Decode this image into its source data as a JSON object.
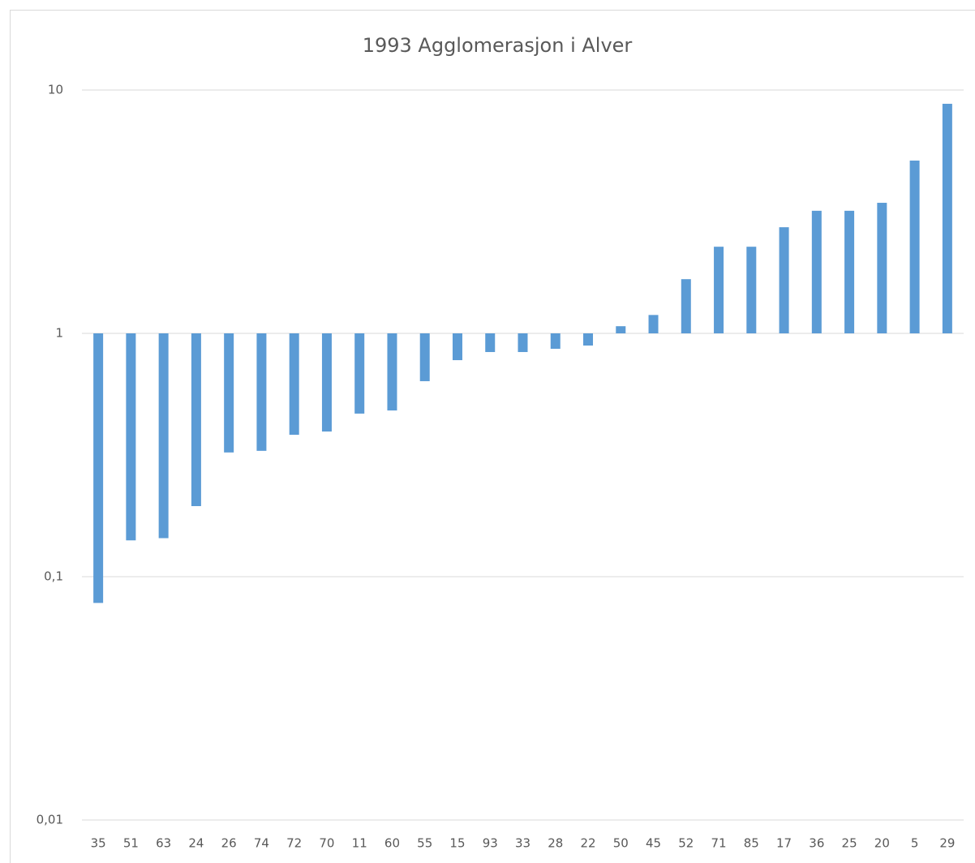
{
  "chart_data": {
    "type": "bar",
    "title": "1993 Agglomerasjon i Alver",
    "categories": [
      "35",
      "51",
      "63",
      "24",
      "26",
      "74",
      "72",
      "70",
      "11",
      "60",
      "55",
      "15",
      "93",
      "33",
      "28",
      "22",
      "50",
      "45",
      "52",
      "71",
      "85",
      "17",
      "36",
      "25",
      "20",
      "5",
      "29"
    ],
    "values": [
      0.078,
      0.141,
      0.144,
      0.195,
      0.324,
      0.329,
      0.383,
      0.395,
      0.468,
      0.482,
      0.636,
      0.776,
      0.838,
      0.838,
      0.864,
      0.891,
      1.07,
      1.19,
      1.67,
      2.27,
      2.27,
      2.73,
      3.19,
      3.19,
      3.44,
      5.13,
      8.78
    ],
    "color": "#5b9bd5",
    "ylim": [
      0.01,
      10
    ],
    "log_scale": true,
    "axis_crosses_at": 1,
    "yticks": [
      {
        "value": 0.01,
        "label": "0,01"
      },
      {
        "value": 0.1,
        "label": "0,1"
      },
      1,
      10
    ],
    "grid": true
  }
}
